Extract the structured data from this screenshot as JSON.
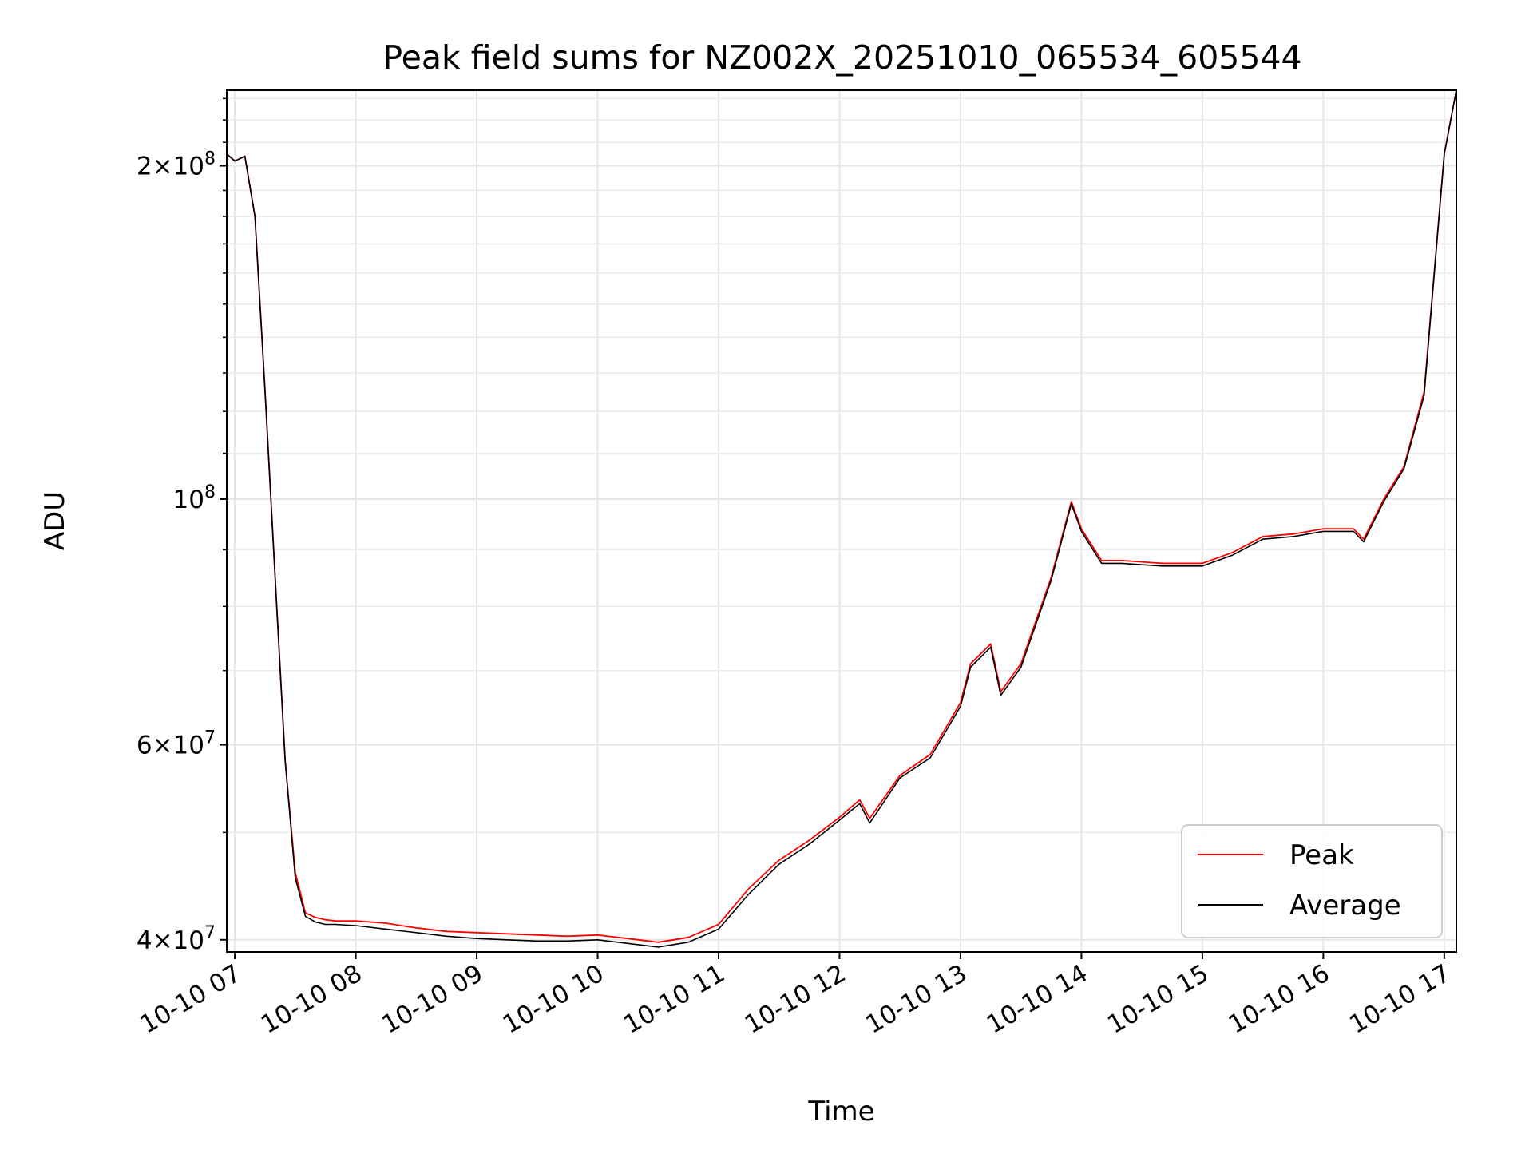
{
  "chart_data": {
    "type": "line",
    "title": "Peak field sums for NZ002X_20251010_065534_605544",
    "xlabel": "Time",
    "ylabel": "ADU",
    "yscale": "log",
    "ylim": [
      39000000,
      234000000
    ],
    "xlim": [
      "2025-10-10 06:56",
      "2025-10-10 17:06"
    ],
    "grid": true,
    "legend_position": "lower-right",
    "x_ticks": [
      "10-10 07",
      "10-10 08",
      "10-10 09",
      "10-10 10",
      "10-10 11",
      "10-10 12",
      "10-10 13",
      "10-10 14",
      "10-10 15",
      "10-10 16",
      "10-10 17"
    ],
    "y_ticks": [
      {
        "value": 40000000,
        "mantissa": "4",
        "exponent": "7"
      },
      {
        "value": 60000000,
        "mantissa": "6",
        "exponent": "7"
      },
      {
        "value": 100000000,
        "mantissa": "",
        "exponent": "8"
      },
      {
        "value": 200000000,
        "mantissa": "2",
        "exponent": "8"
      }
    ],
    "x": [
      "2025-10-10 06:56",
      "2025-10-10 07:00",
      "2025-10-10 07:05",
      "2025-10-10 07:10",
      "2025-10-10 07:15",
      "2025-10-10 07:20",
      "2025-10-10 07:25",
      "2025-10-10 07:30",
      "2025-10-10 07:35",
      "2025-10-10 07:40",
      "2025-10-10 07:45",
      "2025-10-10 07:50",
      "2025-10-10 08:00",
      "2025-10-10 08:15",
      "2025-10-10 08:30",
      "2025-10-10 08:45",
      "2025-10-10 09:00",
      "2025-10-10 09:15",
      "2025-10-10 09:30",
      "2025-10-10 09:45",
      "2025-10-10 10:00",
      "2025-10-10 10:15",
      "2025-10-10 10:30",
      "2025-10-10 10:45",
      "2025-10-10 11:00",
      "2025-10-10 11:15",
      "2025-10-10 11:30",
      "2025-10-10 11:45",
      "2025-10-10 12:00",
      "2025-10-10 12:10",
      "2025-10-10 12:15",
      "2025-10-10 12:30",
      "2025-10-10 12:45",
      "2025-10-10 13:00",
      "2025-10-10 13:05",
      "2025-10-10 13:15",
      "2025-10-10 13:20",
      "2025-10-10 13:30",
      "2025-10-10 13:45",
      "2025-10-10 13:55",
      "2025-10-10 14:00",
      "2025-10-10 14:10",
      "2025-10-10 14:20",
      "2025-10-10 14:40",
      "2025-10-10 15:00",
      "2025-10-10 15:15",
      "2025-10-10 15:30",
      "2025-10-10 15:45",
      "2025-10-10 16:00",
      "2025-10-10 16:15",
      "2025-10-10 16:20",
      "2025-10-10 16:30",
      "2025-10-10 16:40",
      "2025-10-10 16:50",
      "2025-10-10 17:00",
      "2025-10-10 17:06"
    ],
    "series": [
      {
        "name": "Peak",
        "color": "#ff0000",
        "values": [
          205000000,
          202000000,
          204000000,
          180000000,
          125000000,
          85000000,
          58000000,
          46000000,
          42300000,
          41900000,
          41700000,
          41600000,
          41600000,
          41400000,
          41000000,
          40700000,
          40600000,
          40500000,
          40400000,
          40300000,
          40400000,
          40100000,
          39800000,
          40200000,
          41300000,
          44500000,
          47200000,
          49200000,
          51600000,
          53500000,
          51500000,
          56300000,
          58800000,
          65500000,
          71000000,
          74000000,
          67000000,
          71000000,
          85000000,
          99500000,
          94000000,
          88000000,
          88000000,
          87500000,
          87500000,
          89500000,
          92500000,
          93000000,
          94000000,
          94000000,
          92000000,
          100000000,
          107000000,
          125000000,
          205000000,
          234000000
        ]
      },
      {
        "name": "Average",
        "color": "#000000",
        "values": [
          205000000,
          202000000,
          204000000,
          180000000,
          125000000,
          85000000,
          58000000,
          45500000,
          42000000,
          41500000,
          41300000,
          41300000,
          41200000,
          40900000,
          40600000,
          40300000,
          40100000,
          40000000,
          39900000,
          39900000,
          40000000,
          39700000,
          39400000,
          39800000,
          40900000,
          44000000,
          46800000,
          48800000,
          51300000,
          53100000,
          51000000,
          56000000,
          58400000,
          65000000,
          70500000,
          73500000,
          66500000,
          70500000,
          84500000,
          99000000,
          93500000,
          87500000,
          87500000,
          87000000,
          87000000,
          89000000,
          92000000,
          92500000,
          93500000,
          93500000,
          91500000,
          99500000,
          106500000,
          124000000,
          205000000,
          234000000
        ]
      }
    ]
  }
}
